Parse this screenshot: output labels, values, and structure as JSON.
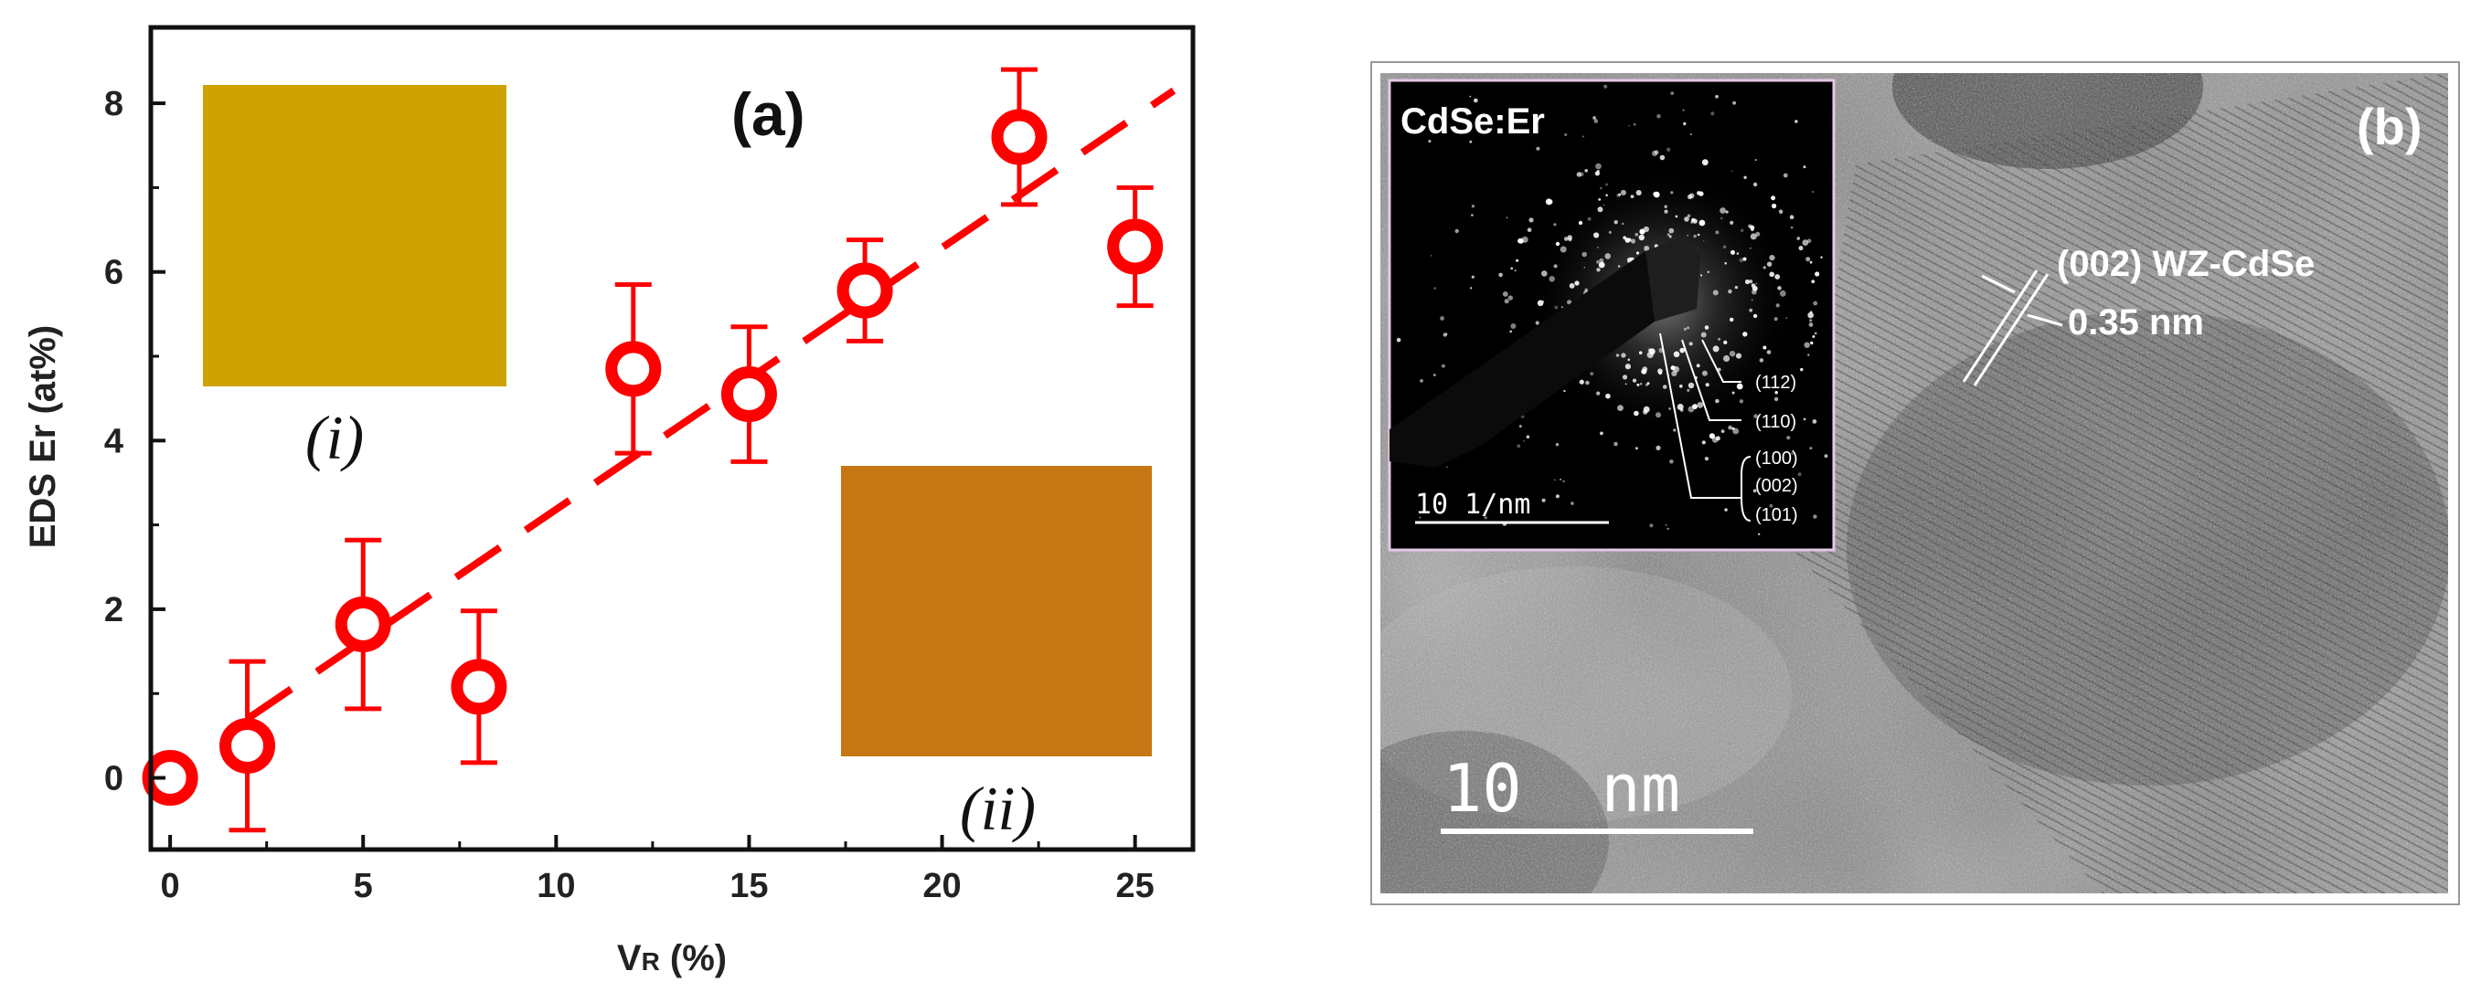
{
  "chart_data": {
    "type": "scatter",
    "title": "(a)",
    "xlabel": "V",
    "xlabel_sub": "R",
    "xlabel_unit": " (%)",
    "ylabel": "EDS Er (at%)",
    "xlim": [
      -0.5,
      26.5
    ],
    "ylim": [
      -0.85,
      8.9
    ],
    "x_ticks": [
      0,
      5,
      10,
      15,
      20,
      25
    ],
    "y_ticks": [
      0,
      2,
      4,
      6,
      8
    ],
    "series": [
      {
        "name": "EDS Er",
        "color": "#ff0000",
        "x": [
          0,
          2,
          5,
          8,
          12,
          15,
          18,
          22,
          25
        ],
        "y": [
          0.0,
          0.38,
          1.82,
          1.08,
          4.85,
          4.55,
          5.78,
          7.6,
          6.3
        ],
        "err_low": [
          0.0,
          1.0,
          1.0,
          0.9,
          1.0,
          0.8,
          0.6,
          0.8,
          0.7
        ],
        "err_high": [
          0.0,
          1.0,
          1.0,
          0.9,
          1.0,
          0.8,
          0.6,
          0.8,
          0.7
        ]
      }
    ],
    "fit_line": {
      "style": "dashed",
      "color": "#ff0000",
      "x": [
        2,
        26
      ],
      "y": [
        0.7,
        8.15
      ]
    },
    "insets": [
      {
        "label": "(i)",
        "color": "#d4a800"
      },
      {
        "label": "(ii)",
        "color": "#c67612"
      }
    ]
  },
  "panel_b": {
    "label": "(b)",
    "inset_title": "CdSe:Er",
    "inset_scale": "10 1/nm",
    "rings": [
      "(112)",
      "(110)",
      "(100)",
      "(002)",
      "(101)"
    ],
    "lattice_label": "(002) WZ-CdSe",
    "spacing_label": "0.35 nm",
    "scale_label": "10  nm"
  }
}
